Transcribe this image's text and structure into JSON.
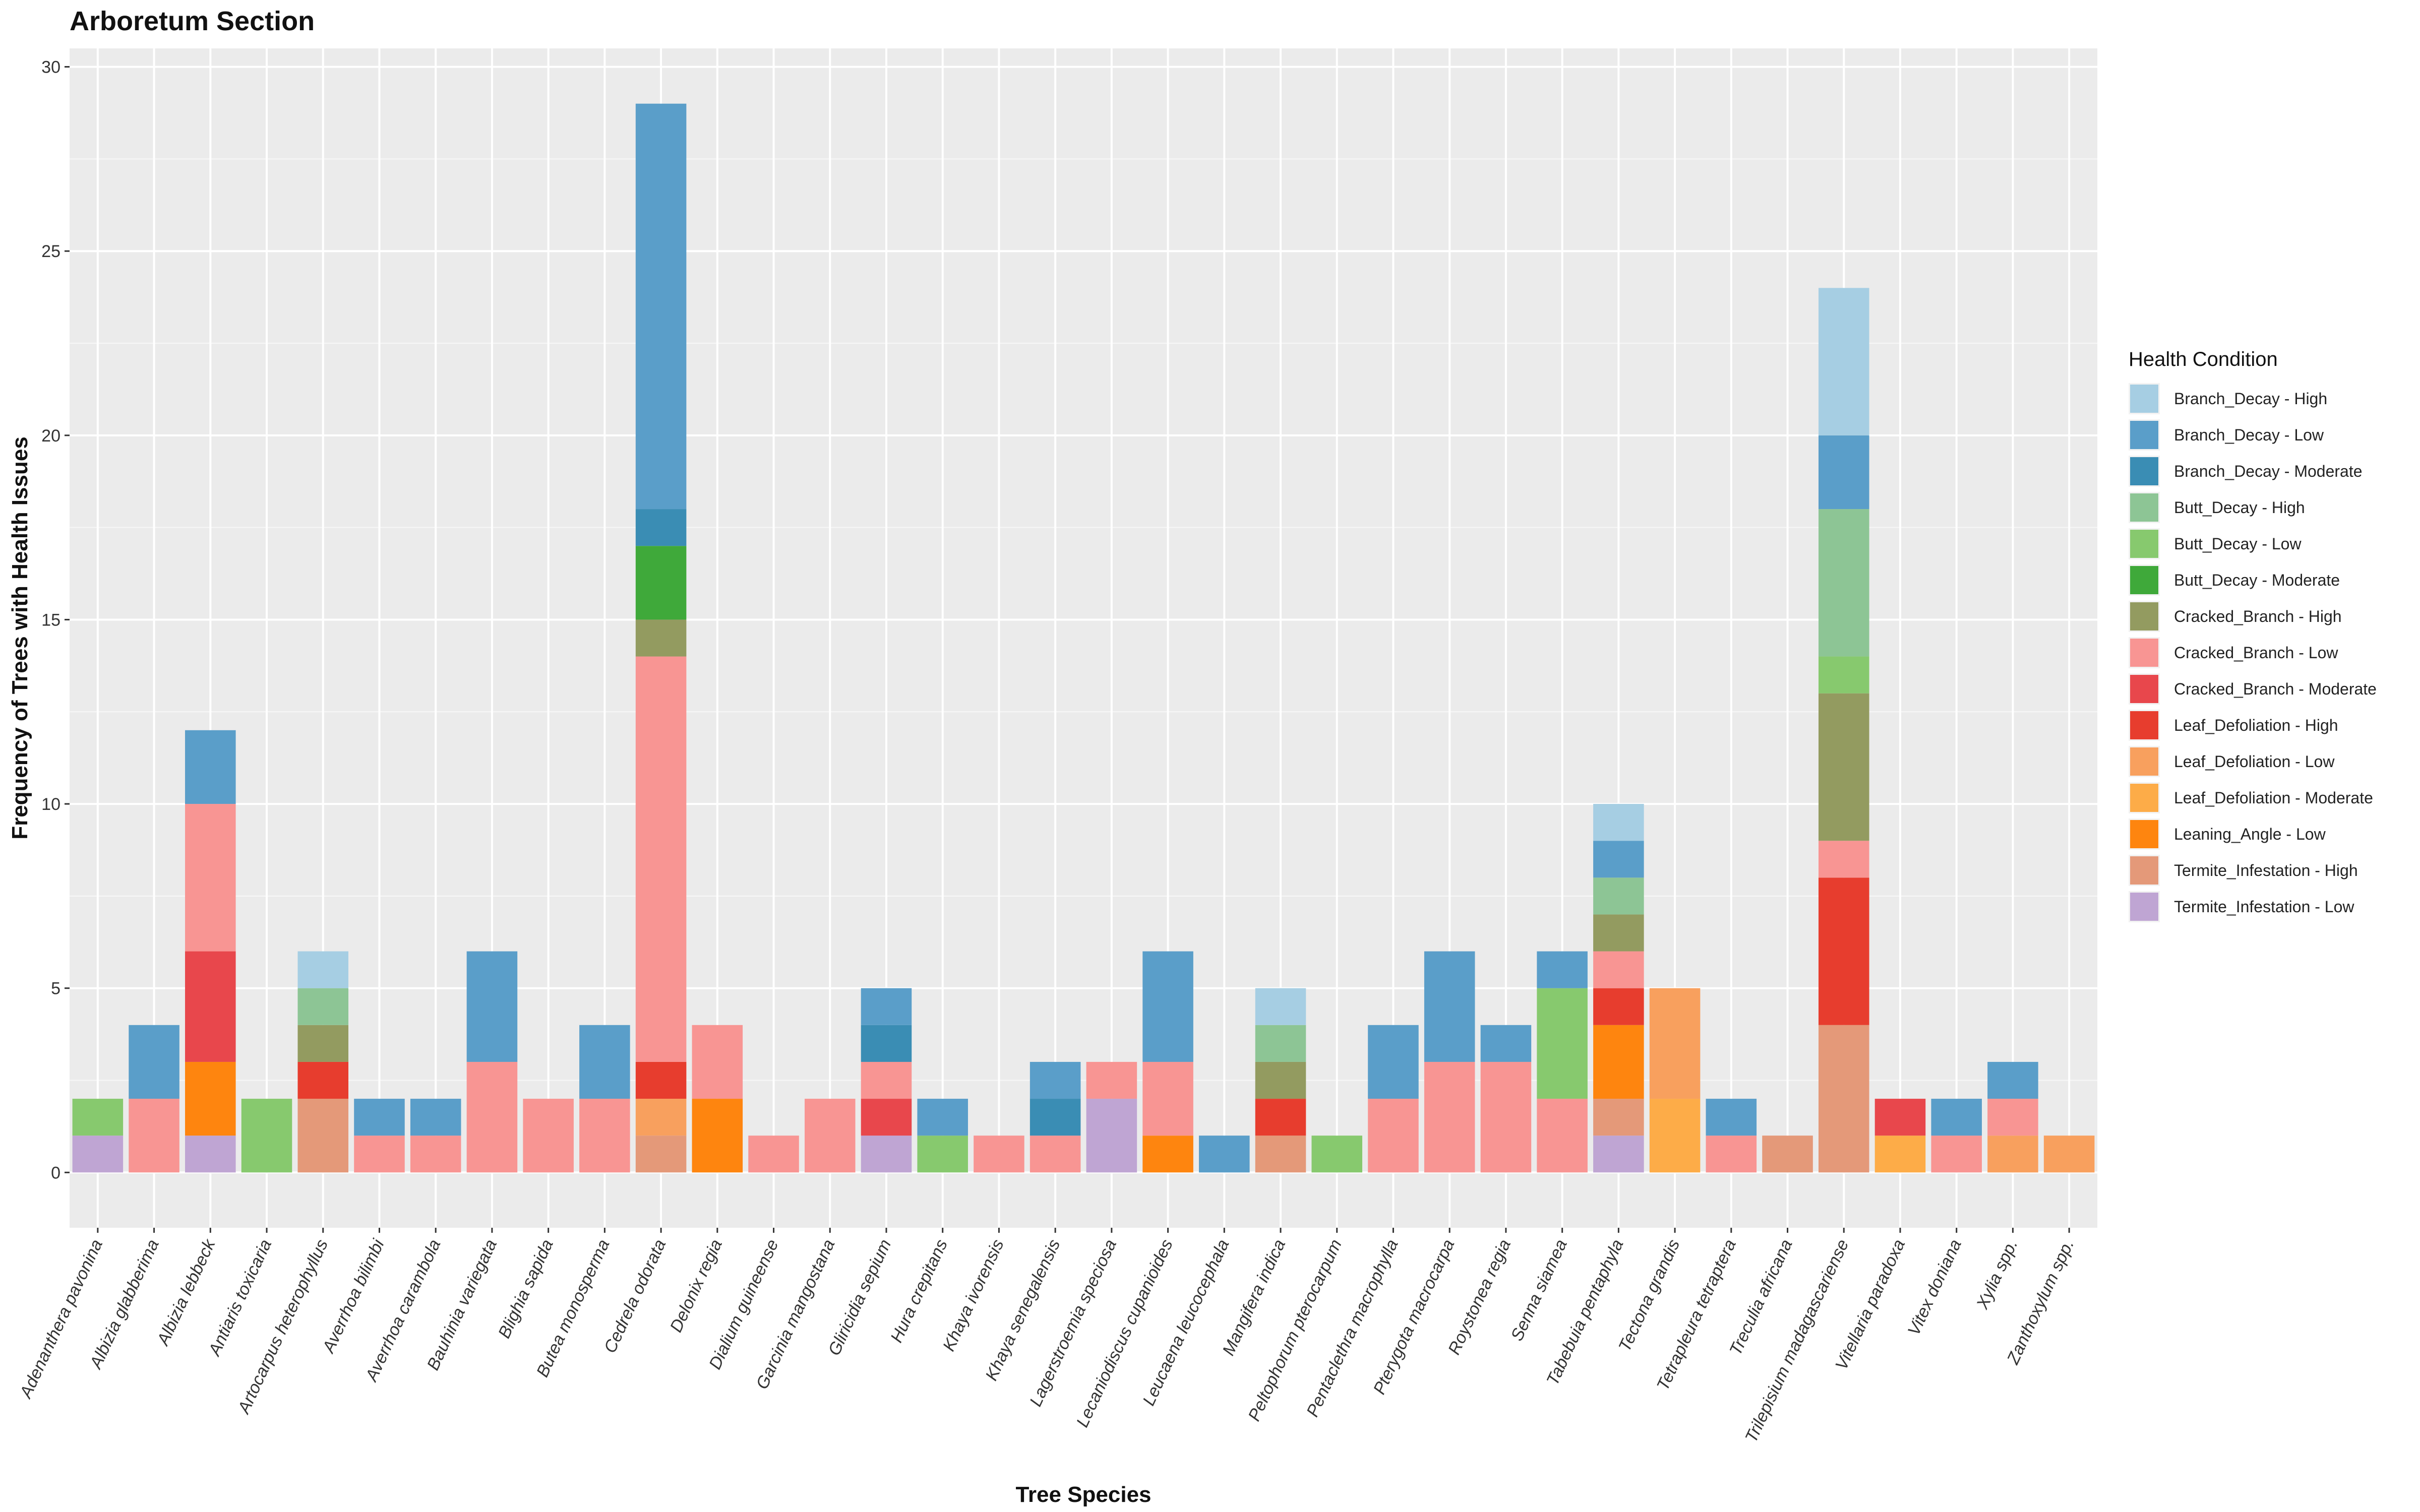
{
  "chart_data": {
    "type": "bar",
    "stacked": true,
    "title": "Arboretum Section",
    "xlabel": "Tree Species",
    "ylabel": "Frequency of Trees with Health Issues",
    "ylim": [
      -1.5,
      30.5
    ],
    "yticks": [
      0,
      5,
      10,
      15,
      20,
      25,
      30
    ],
    "grid": true,
    "legend_title": "Health Condition",
    "legend_position": "right",
    "categories": [
      "Adenanthera pavonina",
      "Albizia glabberima",
      "Albizia lebbeck",
      "Antiaris toxicaria",
      "Artocarpus heterophyllus",
      "Averrhoa bilimbi",
      "Averrhoa carambola",
      "Bauhinia variegata",
      "Blighia sapida",
      "Butea monosperma",
      "Cedrela odorata",
      "Delonix regia",
      "Dialium guineense",
      "Garcinia mangostana",
      "Gliricidia sepium",
      "Hura crepitans",
      "Khaya ivorensis",
      "Khaya senegalensis",
      "Lagerstroemia speciosa",
      "Lecaniodiscus cupanioides",
      "Leucaena leucocephala",
      "Mangifera indica",
      "Peltophorum pterocarpum",
      "Pentaclethra macrophylla",
      "Pterygota macrocarpa",
      "Roystonea regia",
      "Senna siamea",
      "Tabebuia pentaphyla",
      "Tectona grandis",
      "Tetrapleura tetraptera",
      "Treculia africana",
      "Trilepisium madagascariense",
      "Vitellaria paradoxa",
      "Vitex doniana",
      "Xylia spp.",
      "Zanthoxylum spp."
    ],
    "series": [
      {
        "name": "Branch_Decay - High",
        "color": "#A6CEE3",
        "values": [
          0,
          0,
          0,
          0,
          1,
          0,
          0,
          0,
          0,
          0,
          0,
          0,
          0,
          0,
          0,
          0,
          0,
          0,
          0,
          0,
          0,
          1,
          0,
          0,
          0,
          0,
          0,
          1,
          0,
          0,
          0,
          4,
          0,
          0,
          0,
          0
        ]
      },
      {
        "name": "Branch_Decay - Low",
        "color": "#5A9EC9",
        "values": [
          0,
          2,
          2,
          0,
          0,
          1,
          1,
          3,
          0,
          2,
          11,
          0,
          0,
          0,
          1,
          1,
          0,
          1,
          0,
          3,
          1,
          0,
          0,
          2,
          3,
          1,
          1,
          1,
          0,
          1,
          0,
          2,
          0,
          1,
          1,
          0
        ]
      },
      {
        "name": "Branch_Decay - Moderate",
        "color": "#3A8DB4",
        "values": [
          0,
          0,
          0,
          0,
          0,
          0,
          0,
          0,
          0,
          0,
          1,
          0,
          0,
          0,
          1,
          0,
          0,
          1,
          0,
          0,
          0,
          0,
          0,
          0,
          0,
          0,
          0,
          0,
          0,
          0,
          0,
          0,
          0,
          0,
          0,
          0
        ]
      },
      {
        "name": "Butt_Decay - High",
        "color": "#8DC595",
        "values": [
          0,
          0,
          0,
          0,
          1,
          0,
          0,
          0,
          0,
          0,
          0,
          0,
          0,
          0,
          0,
          0,
          0,
          0,
          0,
          0,
          0,
          1,
          0,
          0,
          0,
          0,
          0,
          1,
          0,
          0,
          0,
          4,
          0,
          0,
          0,
          0
        ]
      },
      {
        "name": "Butt_Decay - Low",
        "color": "#87C96E",
        "values": [
          1,
          0,
          0,
          2,
          0,
          0,
          0,
          0,
          0,
          0,
          0,
          0,
          0,
          0,
          0,
          1,
          0,
          0,
          0,
          0,
          0,
          0,
          1,
          0,
          0,
          0,
          3,
          0,
          0,
          0,
          0,
          1,
          0,
          0,
          0,
          0
        ]
      },
      {
        "name": "Butt_Decay - Moderate",
        "color": "#3FA93A",
        "values": [
          0,
          0,
          0,
          0,
          0,
          0,
          0,
          0,
          0,
          0,
          2,
          0,
          0,
          0,
          0,
          0,
          0,
          0,
          0,
          0,
          0,
          0,
          0,
          0,
          0,
          0,
          0,
          0,
          0,
          0,
          0,
          0,
          0,
          0,
          0,
          0
        ]
      },
      {
        "name": "Cracked_Branch - High",
        "color": "#939B60",
        "values": [
          0,
          0,
          0,
          0,
          1,
          0,
          0,
          0,
          0,
          0,
          1,
          0,
          0,
          0,
          0,
          0,
          0,
          0,
          0,
          0,
          0,
          1,
          0,
          0,
          0,
          0,
          0,
          1,
          0,
          0,
          0,
          4,
          0,
          0,
          0,
          0
        ]
      },
      {
        "name": "Cracked_Branch - Low",
        "color": "#F89593",
        "values": [
          0,
          2,
          4,
          0,
          0,
          1,
          1,
          3,
          2,
          2,
          11,
          2,
          1,
          2,
          1,
          0,
          1,
          1,
          1,
          2,
          0,
          0,
          0,
          2,
          3,
          3,
          2,
          1,
          0,
          1,
          0,
          1,
          0,
          1,
          1,
          0
        ]
      },
      {
        "name": "Cracked_Branch - Moderate",
        "color": "#E8474C",
        "values": [
          0,
          0,
          3,
          0,
          0,
          0,
          0,
          0,
          0,
          0,
          0,
          0,
          0,
          0,
          1,
          0,
          0,
          0,
          0,
          0,
          0,
          0,
          0,
          0,
          0,
          0,
          0,
          0,
          0,
          0,
          0,
          0,
          1,
          0,
          0,
          0
        ]
      },
      {
        "name": "Leaf_Defoliation - High",
        "color": "#E73D2E",
        "values": [
          0,
          0,
          0,
          0,
          1,
          0,
          0,
          0,
          0,
          0,
          1,
          0,
          0,
          0,
          0,
          0,
          0,
          0,
          0,
          0,
          0,
          1,
          0,
          0,
          0,
          0,
          0,
          1,
          0,
          0,
          0,
          4,
          0,
          0,
          0,
          0
        ]
      },
      {
        "name": "Leaf_Defoliation - Low",
        "color": "#F8A05E",
        "values": [
          0,
          0,
          0,
          0,
          0,
          0,
          0,
          0,
          0,
          0,
          1,
          0,
          0,
          0,
          0,
          0,
          0,
          0,
          0,
          0,
          0,
          0,
          0,
          0,
          0,
          0,
          0,
          0,
          3,
          0,
          0,
          0,
          0,
          0,
          1,
          1
        ]
      },
      {
        "name": "Leaf_Defoliation - Moderate",
        "color": "#FDAC48",
        "values": [
          0,
          0,
          0,
          0,
          0,
          0,
          0,
          0,
          0,
          0,
          0,
          0,
          0,
          0,
          0,
          0,
          0,
          0,
          0,
          0,
          0,
          0,
          0,
          0,
          0,
          0,
          0,
          0,
          2,
          0,
          0,
          0,
          1,
          0,
          0,
          0
        ]
      },
      {
        "name": "Leaning_Angle - Low",
        "color": "#FE850F",
        "values": [
          0,
          0,
          2,
          0,
          0,
          0,
          0,
          0,
          0,
          0,
          0,
          2,
          0,
          0,
          0,
          0,
          0,
          0,
          0,
          1,
          0,
          0,
          0,
          0,
          0,
          0,
          0,
          2,
          0,
          0,
          0,
          0,
          0,
          0,
          0,
          0
        ]
      },
      {
        "name": "Termite_Infestation - High",
        "color": "#E49979",
        "values": [
          0,
          0,
          0,
          0,
          2,
          0,
          0,
          0,
          0,
          0,
          1,
          0,
          0,
          0,
          0,
          0,
          0,
          0,
          0,
          0,
          0,
          1,
          0,
          0,
          0,
          0,
          0,
          1,
          0,
          0,
          1,
          4,
          0,
          0,
          0,
          0
        ]
      },
      {
        "name": "Termite_Infestation - Low",
        "color": "#BFA5D3",
        "values": [
          1,
          0,
          1,
          0,
          0,
          0,
          0,
          0,
          0,
          0,
          0,
          0,
          0,
          0,
          1,
          0,
          0,
          0,
          2,
          0,
          0,
          0,
          0,
          0,
          0,
          0,
          0,
          1,
          0,
          0,
          0,
          0,
          0,
          0,
          0,
          0
        ]
      }
    ]
  }
}
